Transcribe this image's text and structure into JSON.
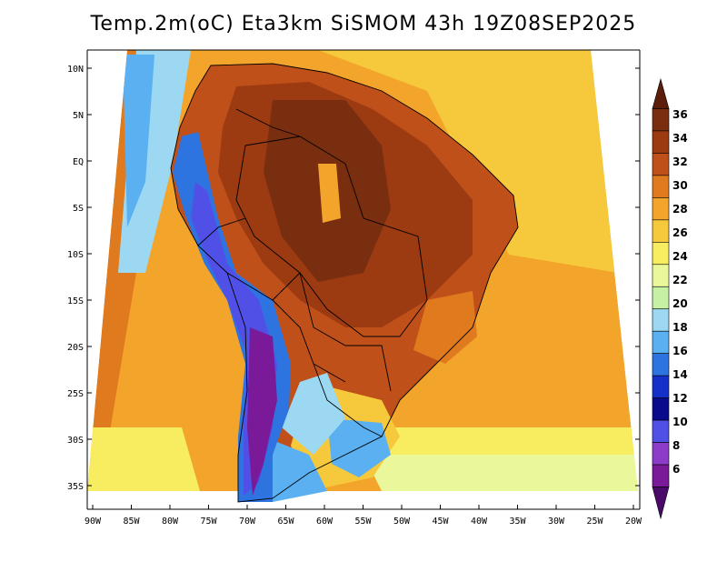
{
  "title": "Temp.2m(oC) Eta3km SiSMOM 43h 19Z08SEP2025",
  "lat_labels": [
    "10N",
    "5N",
    "EQ",
    "5S",
    "10S",
    "15S",
    "20S",
    "25S",
    "30S",
    "35S"
  ],
  "lon_labels": [
    "90W",
    "85W",
    "80W",
    "75W",
    "70W",
    "65W",
    "60W",
    "55W",
    "50W",
    "45W",
    "40W",
    "35W",
    "30W",
    "25W",
    "20W"
  ],
  "colorbar": {
    "labels": [
      "36",
      "34",
      "32",
      "30",
      "28",
      "26",
      "24",
      "22",
      "20",
      "18",
      "16",
      "14",
      "12",
      "10",
      "8",
      "6"
    ],
    "colors": [
      "#5a1e0a",
      "#7a2e10",
      "#9c3a12",
      "#c0501a",
      "#e07a1e",
      "#f2a52a",
      "#f6c93c",
      "#f8ec60",
      "#eaf79a",
      "#c6f0a4",
      "#9cd8f2",
      "#5ab0f0",
      "#2e74e0",
      "#1430c8",
      "#0a0a8c",
      "#5050e6",
      "#8c3cc8",
      "#7a1a98",
      "#4a0a6a"
    ]
  }
}
